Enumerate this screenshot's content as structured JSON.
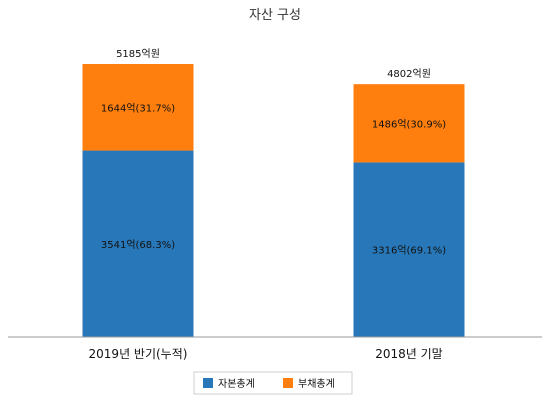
{
  "chart_data": {
    "type": "bar",
    "stacked": true,
    "title": "자산 구성",
    "categories": [
      "2019년 반기(누적)",
      "2018년 기말"
    ],
    "totals": [
      5185,
      4802
    ],
    "total_labels": [
      "5185억원",
      "4802억원"
    ],
    "series": [
      {
        "name": "자본총계",
        "color": "#2878b9",
        "values": [
          3541,
          3316
        ],
        "labels": [
          "3541억(68.3%)",
          "3316억(69.1%)"
        ]
      },
      {
        "name": "부채총계",
        "color": "#ff7f0e",
        "values": [
          1644,
          1486
        ],
        "labels": [
          "1644억(31.7%)",
          "1486억(30.9%)"
        ]
      }
    ],
    "ylim": [
      0,
      5185
    ],
    "grid": false,
    "legend": "bottom"
  }
}
